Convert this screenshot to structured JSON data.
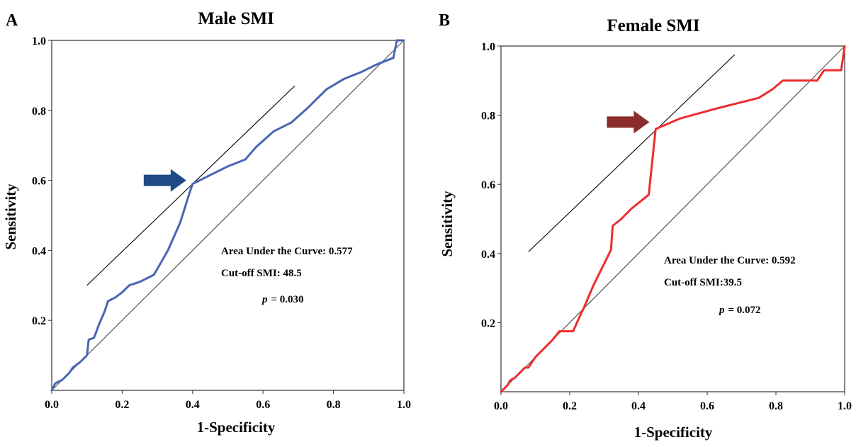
{
  "chart_data": [
    {
      "type": "line",
      "panel_label": "A",
      "title": "Male SMI",
      "xlabel": "1-Specificity",
      "ylabel": "Sensitivity",
      "xlim": [
        0,
        1
      ],
      "ylim": [
        0,
        1
      ],
      "xticks": [
        "0.0",
        "0.2",
        "0.4",
        "0.6",
        "0.8",
        "1.0"
      ],
      "yticks": [
        "0.2",
        "0.4",
        "0.6",
        "0.8",
        "1.0"
      ],
      "grid": false,
      "series": [
        {
          "color": "#4a65b5",
          "x": [
            0.0,
            0.01,
            0.02,
            0.03,
            0.04,
            0.05,
            0.06,
            0.08,
            0.1,
            0.105,
            0.12,
            0.135,
            0.15,
            0.16,
            0.18,
            0.2,
            0.22,
            0.25,
            0.29,
            0.33,
            0.365,
            0.39,
            0.4,
            0.42,
            0.45,
            0.48,
            0.5,
            0.55,
            0.58,
            0.63,
            0.68,
            0.73,
            0.78,
            0.83,
            0.88,
            0.92,
            0.97,
            0.98,
            1.0
          ],
          "y": [
            0.0,
            0.02,
            0.025,
            0.03,
            0.04,
            0.05,
            0.065,
            0.08,
            0.1,
            0.145,
            0.15,
            0.19,
            0.225,
            0.255,
            0.265,
            0.28,
            0.3,
            0.31,
            0.33,
            0.4,
            0.48,
            0.56,
            0.59,
            0.6,
            0.615,
            0.63,
            0.64,
            0.66,
            0.695,
            0.74,
            0.765,
            0.81,
            0.86,
            0.89,
            0.91,
            0.93,
            0.95,
            1.0,
            1.0
          ]
        },
        {
          "color": "#555555",
          "x": [
            0,
            1
          ],
          "y": [
            0,
            1
          ]
        }
      ],
      "tangent_line": {
        "x": [
          0.1,
          0.69
        ],
        "y": [
          0.3,
          0.87
        ]
      },
      "marker": {
        "type": "arrow",
        "color": "#1e4b84",
        "points_to": [
          0.39,
          0.6
        ]
      },
      "annotations": [
        "Area Under the Curve: 0.577",
        "Cut-off SMI: 48.5"
      ],
      "p_symbol": "p",
      "p_value": "= 0.030"
    },
    {
      "type": "line",
      "panel_label": "B",
      "title": "Female SMI",
      "xlabel": "1-Specificity",
      "ylabel": "Sensitivity",
      "xlim": [
        0,
        1
      ],
      "ylim": [
        0,
        1
      ],
      "xticks": [
        "0.0",
        "0.2",
        "0.4",
        "0.6",
        "0.8",
        "1.0"
      ],
      "yticks": [
        "0.2",
        "0.4",
        "0.6",
        "0.8",
        "1.0"
      ],
      "grid": false,
      "series": [
        {
          "color": "#ee2c2c",
          "x": [
            0.0,
            0.01,
            0.02,
            0.025,
            0.03,
            0.04,
            0.06,
            0.07,
            0.08,
            0.1,
            0.12,
            0.15,
            0.17,
            0.19,
            0.21,
            0.23,
            0.24,
            0.27,
            0.3,
            0.32,
            0.325,
            0.35,
            0.38,
            0.43,
            0.45,
            0.52,
            0.63,
            0.75,
            0.79,
            0.82,
            0.85,
            0.9,
            0.92,
            0.94,
            0.98,
            0.99,
            1.0
          ],
          "y": [
            0.0,
            0.01,
            0.02,
            0.03,
            0.035,
            0.04,
            0.06,
            0.07,
            0.07,
            0.1,
            0.12,
            0.15,
            0.175,
            0.175,
            0.175,
            0.22,
            0.24,
            0.31,
            0.37,
            0.41,
            0.48,
            0.5,
            0.53,
            0.57,
            0.76,
            0.79,
            0.82,
            0.85,
            0.875,
            0.9,
            0.9,
            0.9,
            0.9,
            0.93,
            0.93,
            0.93,
            1.0
          ]
        },
        {
          "color": "#555555",
          "x": [
            0,
            1
          ],
          "y": [
            0,
            1
          ]
        }
      ],
      "tangent_line": {
        "x": [
          0.08,
          0.68
        ],
        "y": [
          0.405,
          0.975
        ]
      },
      "marker": {
        "type": "arrow",
        "color": "#8b2c2c",
        "points_to": [
          0.44,
          0.78
        ]
      },
      "annotations": [
        "Area Under the Curve: 0.592",
        "Cut-off SMI:39.5"
      ],
      "p_symbol": "p",
      "p_value": "= 0.072"
    }
  ]
}
